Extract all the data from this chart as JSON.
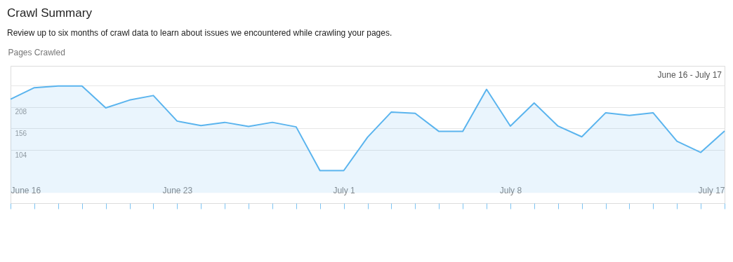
{
  "chart_data": {
    "type": "area",
    "title": "Crawl Summary",
    "subtitle": "Review up to six months of crawl data to learn about issues we encountered while crawling your pages.",
    "ylabel": "Pages Crawled",
    "annotations": [
      "June 16 - July 17"
    ],
    "categories": [
      "June 16",
      null,
      null,
      null,
      null,
      null,
      null,
      "June 23",
      null,
      null,
      null,
      null,
      null,
      null,
      "July 1",
      null,
      null,
      null,
      null,
      null,
      null,
      "July 8",
      null,
      null,
      null,
      null,
      null,
      null,
      null,
      null,
      "July 17"
    ],
    "series": [
      {
        "color": "#5ab4ee",
        "values": [
          227,
          255,
          259,
          259,
          206,
          225,
          236,
          174,
          163,
          171,
          161,
          171,
          160,
          54,
          54,
          135,
          196,
          193,
          149,
          149,
          251,
          162,
          218,
          162,
          136,
          194,
          188,
          194,
          125,
          98,
          150
        ]
      }
    ],
    "ylim": [
      -25,
      308
    ],
    "yticks": [
      104,
      156,
      208,
      {
        "value": 260,
        "label": null
      }
    ],
    "grid": "y"
  }
}
